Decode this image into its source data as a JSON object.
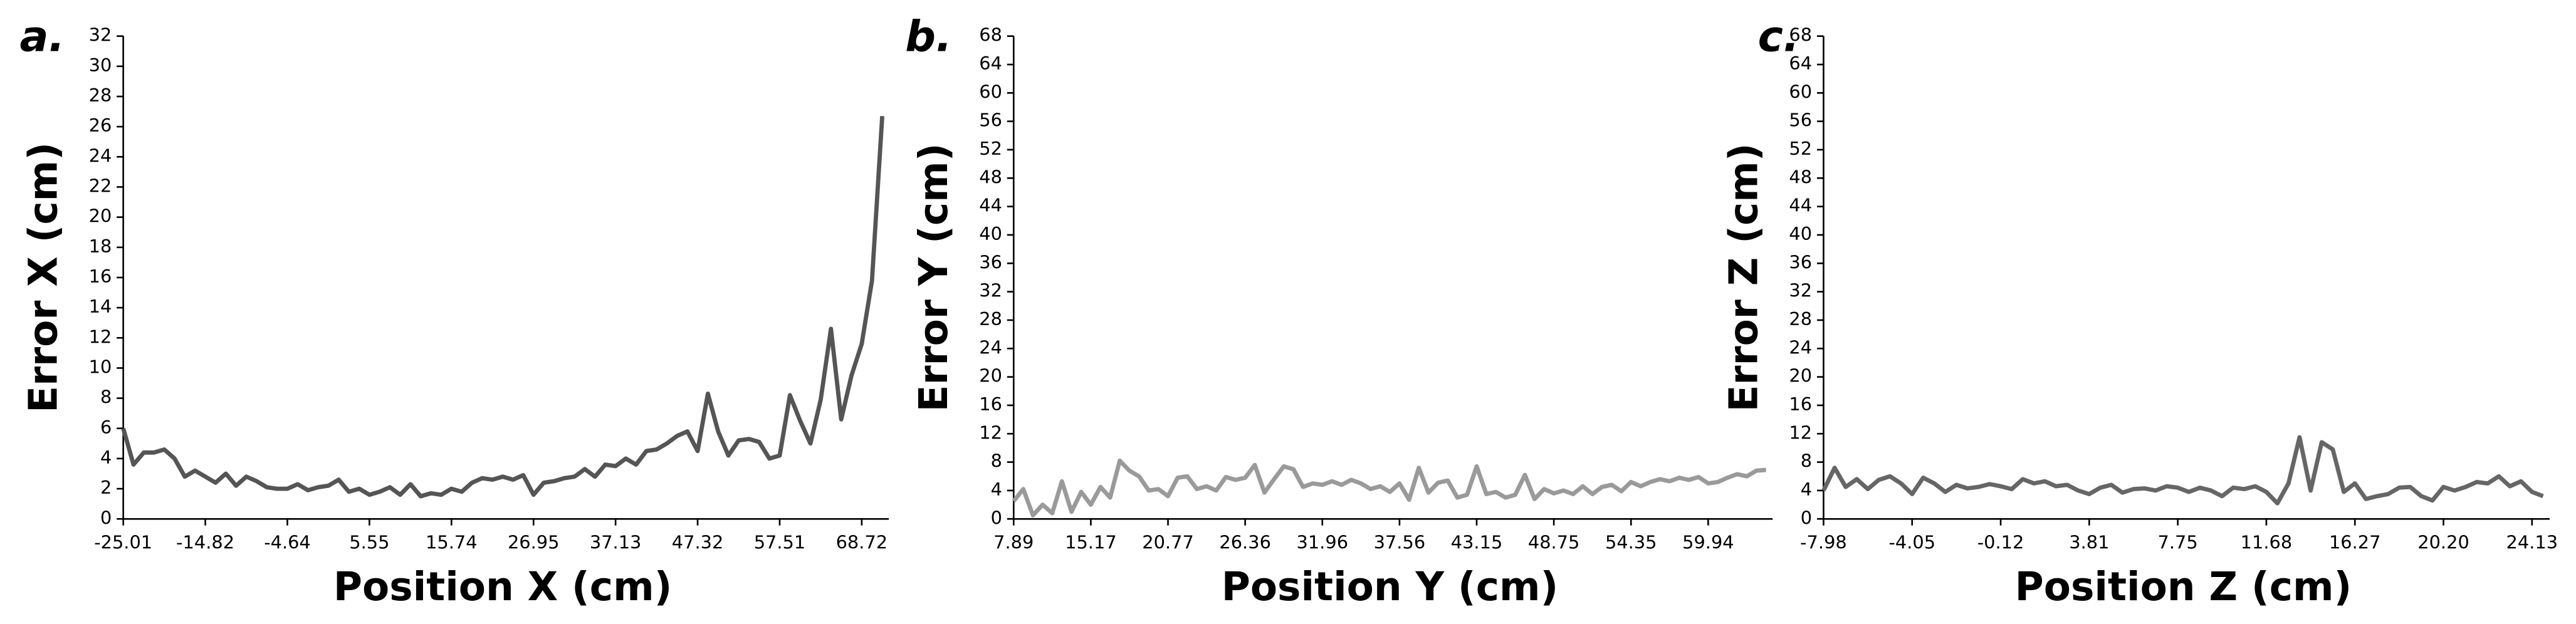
{
  "chart_data": [
    {
      "type": "line",
      "panel_label": "a.",
      "x_label": "Position X (cm)",
      "y_label": "Error X (cm)",
      "color": "#555555",
      "categories": [
        "-25.01",
        null,
        null,
        null,
        null,
        null,
        null,
        null,
        "-14.82",
        null,
        null,
        null,
        null,
        null,
        null,
        null,
        "-4.64",
        null,
        null,
        null,
        null,
        null,
        null,
        null,
        "5.55",
        null,
        null,
        null,
        null,
        null,
        null,
        null,
        "15.74",
        null,
        null,
        null,
        null,
        null,
        null,
        null,
        "26.95",
        null,
        null,
        null,
        null,
        null,
        null,
        null,
        "37.13",
        null,
        null,
        null,
        null,
        null,
        null,
        null,
        "47.32",
        null,
        null,
        null,
        null,
        null,
        null,
        null,
        "57.51",
        null,
        null,
        null,
        null,
        null,
        null,
        null,
        "68.72",
        null,
        null
      ],
      "values": [
        6,
        3.6,
        4.4,
        4.4,
        4.6,
        4.0,
        2.8,
        3.2,
        2.8,
        2.4,
        3.0,
        2.2,
        2.8,
        2.5,
        2.1,
        2.0,
        2.0,
        2.3,
        1.9,
        2.1,
        2.2,
        2.6,
        1.8,
        2.0,
        1.6,
        1.8,
        2.1,
        1.6,
        2.3,
        1.5,
        1.7,
        1.6,
        2.0,
        1.8,
        2.4,
        2.7,
        2.6,
        2.8,
        2.6,
        2.9,
        1.6,
        2.4,
        2.5,
        2.7,
        2.8,
        3.3,
        2.8,
        3.6,
        3.5,
        4.0,
        3.6,
        4.5,
        4.6,
        5.0,
        5.5,
        5.8,
        4.5,
        8.3,
        5.8,
        4.2,
        5.2,
        5.3,
        5.1,
        4.0,
        4.2,
        8.2,
        6.5,
        5.0,
        7.9,
        12.6,
        6.6,
        9.5,
        11.6,
        15.8,
        26.7
      ],
      "ylim": [
        0,
        32
      ],
      "yticks": [
        0,
        2,
        4,
        6,
        8,
        10,
        12,
        14,
        16,
        18,
        20,
        22,
        24,
        26,
        28,
        30,
        32
      ]
    },
    {
      "type": "line",
      "panel_label": "b.",
      "x_label": "Position Y (cm)",
      "y_label": "Error Y (cm)",
      "color": "#9a9a9a",
      "categories": [
        "7.89",
        null,
        null,
        null,
        null,
        null,
        null,
        null,
        "15.17",
        null,
        null,
        null,
        null,
        null,
        null,
        null,
        "20.77",
        null,
        null,
        null,
        null,
        null,
        null,
        null,
        "26.36",
        null,
        null,
        null,
        null,
        null,
        null,
        null,
        "31.96",
        null,
        null,
        null,
        null,
        null,
        null,
        null,
        "37.56",
        null,
        null,
        null,
        null,
        null,
        null,
        null,
        "43.15",
        null,
        null,
        null,
        null,
        null,
        null,
        null,
        "48.75",
        null,
        null,
        null,
        null,
        null,
        null,
        null,
        "54.35",
        null,
        null,
        null,
        null,
        null,
        null,
        null,
        "59.94",
        null,
        null,
        null,
        null,
        null,
        null
      ],
      "values": [
        2.5,
        4.2,
        0.5,
        2.0,
        0.8,
        5.3,
        1.0,
        3.8,
        2.0,
        4.5,
        3.0,
        8.2,
        6.8,
        6.0,
        4.0,
        4.2,
        3.2,
        5.8,
        6.0,
        4.2,
        4.6,
        4.0,
        5.9,
        5.5,
        5.8,
        7.6,
        3.7,
        5.6,
        7.4,
        7.0,
        4.5,
        5.0,
        4.8,
        5.3,
        4.8,
        5.5,
        5.0,
        4.2,
        4.6,
        3.8,
        5.0,
        2.7,
        7.2,
        3.7,
        5.1,
        5.4,
        3.0,
        3.4,
        7.4,
        3.5,
        3.8,
        3.0,
        3.4,
        6.2,
        2.8,
        4.2,
        3.6,
        4.0,
        3.5,
        4.6,
        3.5,
        4.5,
        4.8,
        3.9,
        5.2,
        4.6,
        5.2,
        5.6,
        5.3,
        5.8,
        5.5,
        5.9,
        5.0,
        5.2,
        5.8,
        6.3,
        6.0,
        6.8,
        6.9
      ],
      "ylim": [
        0,
        68
      ],
      "yticks": [
        0,
        4,
        8,
        12,
        16,
        20,
        24,
        28,
        32,
        36,
        40,
        44,
        48,
        52,
        56,
        60,
        64,
        68
      ]
    },
    {
      "type": "line",
      "panel_label": "c.",
      "x_label": "Position Z (cm)",
      "y_label": "Error Z (cm)",
      "color": "#666666",
      "categories": [
        "-7.98",
        null,
        null,
        null,
        null,
        null,
        null,
        null,
        "-4.05",
        null,
        null,
        null,
        null,
        null,
        null,
        null,
        "-0.12",
        null,
        null,
        null,
        null,
        null,
        null,
        null,
        "3.81",
        null,
        null,
        null,
        null,
        null,
        null,
        null,
        "7.75",
        null,
        null,
        null,
        null,
        null,
        null,
        null,
        "11.68",
        null,
        null,
        null,
        null,
        null,
        null,
        null,
        "16.27",
        null,
        null,
        null,
        null,
        null,
        null,
        null,
        "20.20",
        null,
        null,
        null,
        null,
        null,
        null,
        null,
        "24.13",
        null
      ],
      "values": [
        4.0,
        7.2,
        4.5,
        5.6,
        4.2,
        5.5,
        6.0,
        5.0,
        3.5,
        5.8,
        5.0,
        3.8,
        4.8,
        4.3,
        4.5,
        4.9,
        4.6,
        4.2,
        5.6,
        5.0,
        5.3,
        4.6,
        4.8,
        4.0,
        3.5,
        4.4,
        4.8,
        3.7,
        4.2,
        4.3,
        4.0,
        4.6,
        4.4,
        3.8,
        4.4,
        4.0,
        3.2,
        4.4,
        4.2,
        4.6,
        3.8,
        2.2,
        5.0,
        11.5,
        4.0,
        10.8,
        9.8,
        3.8,
        5.0,
        2.8,
        3.2,
        3.5,
        4.4,
        4.5,
        3.2,
        2.6,
        4.5,
        4.0,
        4.5,
        5.2,
        5.0,
        6.0,
        4.6,
        5.3,
        3.8,
        3.2
      ],
      "ylim": [
        0,
        68
      ],
      "yticks": [
        0,
        4,
        8,
        12,
        16,
        20,
        24,
        28,
        32,
        36,
        40,
        44,
        48,
        52,
        56,
        60,
        64,
        68
      ]
    }
  ]
}
